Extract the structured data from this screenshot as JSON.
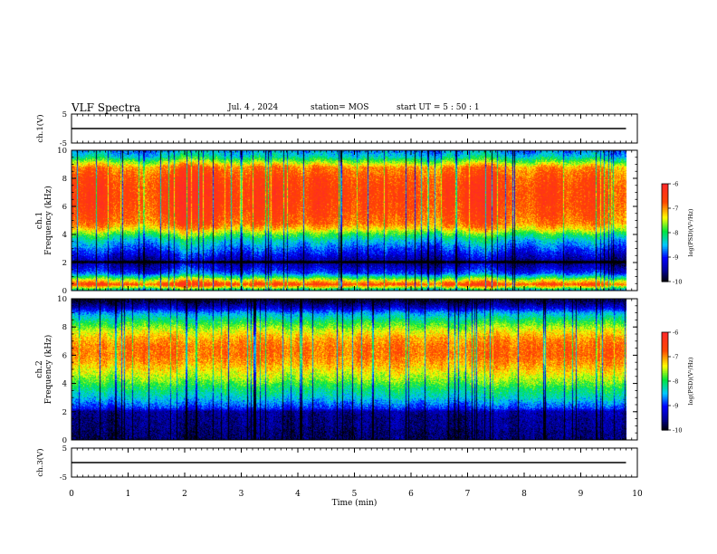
{
  "header": {
    "title": "VLF Spectra",
    "date": "Jul.  4  , 2024",
    "station": "station= MOS",
    "start_ut": "start  UT  =   5  : 50 : 1"
  },
  "chart_data": [
    {
      "type": "line",
      "id": "ch1-voltage",
      "ylabel": "ch.1(V)",
      "ylim": [
        -5,
        5
      ],
      "yticks": [
        -5,
        5
      ],
      "x": [
        0,
        9.8
      ],
      "values": [
        0,
        0
      ],
      "xlim": [
        0,
        10
      ]
    },
    {
      "type": "heatmap",
      "id": "ch1-spectrogram",
      "ylabel": "Frequency (kHz)",
      "channel_label": "ch.1",
      "ylim": [
        0,
        10
      ],
      "yticks": [
        0,
        2,
        4,
        6,
        8,
        10
      ],
      "xlim": [
        0,
        10
      ],
      "data_end_min": 9.8,
      "colorbar": {
        "label": "log(PSD)(V²/Hz)",
        "range": [
          -10,
          -6
        ],
        "ticks": [
          -10,
          -9,
          -8,
          -7,
          -6
        ]
      },
      "profile_freq_khz": [
        0,
        0.4,
        0.8,
        1.2,
        1.6,
        2.0,
        2.4,
        2.8,
        3.2,
        3.6,
        4.0,
        4.4,
        4.8,
        5.6,
        6.4,
        7.2,
        8.0,
        8.8,
        9.2,
        9.6,
        10.0
      ],
      "profile_log_psd": [
        -8.3,
        -6.5,
        -7.6,
        -8.8,
        -9.2,
        -9.5,
        -9.2,
        -8.9,
        -8.6,
        -8.3,
        -7.8,
        -7.2,
        -6.8,
        -6.6,
        -6.5,
        -6.5,
        -6.6,
        -6.9,
        -7.6,
        -8.3,
        -8.6
      ]
    },
    {
      "type": "heatmap",
      "id": "ch2-spectrogram",
      "ylabel": "Frequency (kHz)",
      "channel_label": "ch.2",
      "ylim": [
        0,
        10
      ],
      "yticks": [
        0,
        2,
        4,
        6,
        8,
        10
      ],
      "xlim": [
        0,
        10
      ],
      "data_end_min": 9.8,
      "colorbar": {
        "label": "log(PSD)(V²/Hz)",
        "range": [
          -10,
          -6
        ],
        "ticks": [
          -10,
          -9,
          -8,
          -7,
          -6
        ]
      },
      "profile_freq_khz": [
        0,
        0.5,
        1.0,
        1.5,
        2.0,
        2.2,
        2.6,
        3.0,
        3.6,
        4.2,
        4.8,
        5.4,
        6.0,
        6.6,
        7.2,
        7.8,
        8.4,
        9.0,
        9.4,
        9.8,
        10.0
      ],
      "profile_log_psd": [
        -9.6,
        -9.6,
        -9.5,
        -9.5,
        -9.4,
        -8.9,
        -8.6,
        -8.3,
        -8.0,
        -7.6,
        -7.3,
        -7.0,
        -6.8,
        -6.8,
        -7.0,
        -7.4,
        -7.9,
        -8.5,
        -9.2,
        -9.7,
        -9.8
      ]
    },
    {
      "type": "line",
      "id": "ch3-voltage",
      "ylabel": "ch.3(V)",
      "ylim": [
        -5,
        5
      ],
      "yticks": [
        -5,
        5
      ],
      "x": [
        0,
        9.8
      ],
      "values": [
        0,
        0
      ],
      "xlim": [
        0,
        10
      ],
      "xlabel": "Time  (min)",
      "xticks": [
        0,
        1,
        2,
        3,
        4,
        5,
        6,
        7,
        8,
        9,
        10
      ]
    }
  ]
}
